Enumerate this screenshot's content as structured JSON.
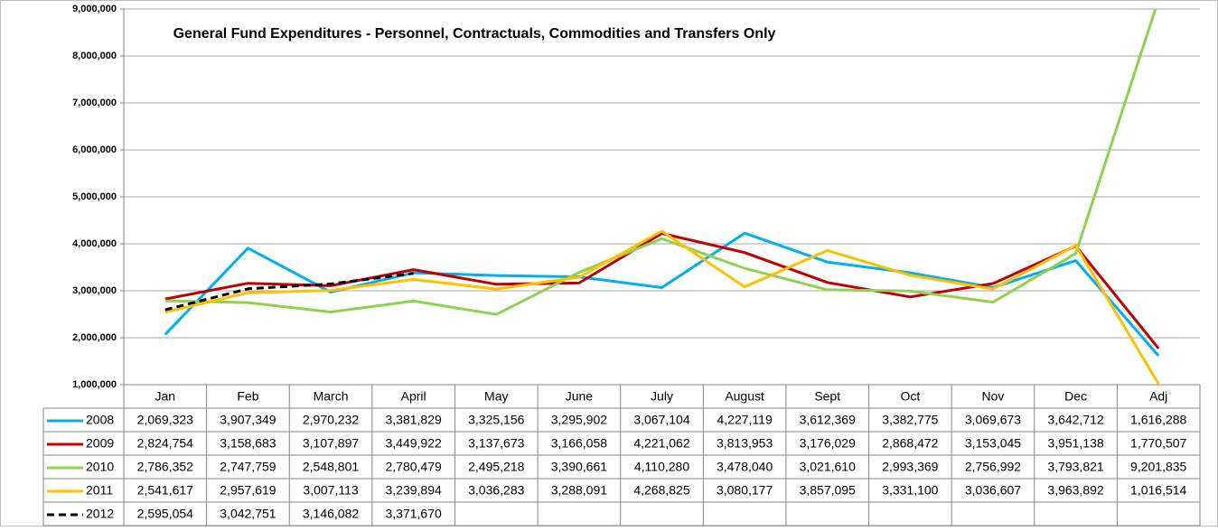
{
  "chart_data": {
    "type": "line",
    "title": "General Fund Expenditures - Personnel,  Contractuals, Commodities  and Transfers Only",
    "categories": [
      "Jan",
      "Feb",
      "March",
      "April",
      "May",
      "June",
      "July",
      "August",
      "Sept",
      "Oct",
      "Nov",
      "Dec",
      "Adj"
    ],
    "ylim": [
      1000000,
      9000000
    ],
    "yticks": [
      {
        "value": 1000000,
        "label": "1,000,000"
      },
      {
        "value": 2000000,
        "label": "2,000,000"
      },
      {
        "value": 3000000,
        "label": "3,000,000"
      },
      {
        "value": 4000000,
        "label": "4,000,000"
      },
      {
        "value": 5000000,
        "label": "5,000,000"
      },
      {
        "value": 6000000,
        "label": "6,000,000"
      },
      {
        "value": 7000000,
        "label": "7,000,000"
      },
      {
        "value": 8000000,
        "label": "8,000,000"
      },
      {
        "value": 9000000,
        "label": "9,000,000"
      }
    ],
    "grid": true,
    "series": [
      {
        "name": "2008",
        "color": "#00b0f0",
        "line_style": "solid",
        "values": [
          2069323,
          3907349,
          2970232,
          3381829,
          3325156,
          3295902,
          3067104,
          4227119,
          3612369,
          3382775,
          3069673,
          3642712,
          1616288
        ],
        "value_labels": [
          "2,069,323",
          "3,907,349",
          "2,970,232",
          "3,381,829",
          "3,325,156",
          "3,295,902",
          "3,067,104",
          "4,227,119",
          "3,612,369",
          "3,382,775",
          "3,069,673",
          "3,642,712",
          "1,616,288"
        ]
      },
      {
        "name": "2009",
        "color": "#c00000",
        "line_style": "solid",
        "values": [
          2824754,
          3158683,
          3107897,
          3449922,
          3137673,
          3166058,
          4221062,
          3813953,
          3176029,
          2868472,
          3153045,
          3951138,
          1770507
        ],
        "value_labels": [
          "2,824,754",
          "3,158,683",
          "3,107,897",
          "3,449,922",
          "3,137,673",
          "3,166,058",
          "4,221,062",
          "3,813,953",
          "3,176,029",
          "2,868,472",
          "3,153,045",
          "3,951,138",
          "1,770,507"
        ]
      },
      {
        "name": "2010",
        "color": "#92d050",
        "line_style": "solid",
        "values": [
          2786352,
          2747759,
          2548801,
          2780479,
          2495218,
          3390661,
          4110280,
          3478040,
          3021610,
          2993369,
          2756992,
          3793821,
          9201835
        ],
        "value_labels": [
          "2,786,352",
          "2,747,759",
          "2,548,801",
          "2,780,479",
          "2,495,218",
          "3,390,661",
          "4,110,280",
          "3,478,040",
          "3,021,610",
          "2,993,369",
          "2,756,992",
          "3,793,821",
          "9,201,835"
        ]
      },
      {
        "name": "2011",
        "color": "#ffc000",
        "line_style": "solid",
        "values": [
          2541617,
          2957619,
          3007113,
          3239894,
          3036283,
          3288091,
          4268825,
          3080177,
          3857095,
          3331100,
          3036607,
          3963892,
          1016514
        ],
        "value_labels": [
          "2,541,617",
          "2,957,619",
          "3,007,113",
          "3,239,894",
          "3,036,283",
          "3,288,091",
          "4,268,825",
          "3,080,177",
          "3,857,095",
          "3,331,100",
          "3,036,607",
          "3,963,892",
          "1,016,514"
        ]
      },
      {
        "name": "2012",
        "color": "#000000",
        "line_style": "dashed",
        "values": [
          2595054,
          3042751,
          3146082,
          3371670,
          null,
          null,
          null,
          null,
          null,
          null,
          null,
          null,
          null
        ],
        "value_labels": [
          "2,595,054",
          "3,042,751",
          "3,146,082",
          "3,371,670",
          null,
          null,
          null,
          null,
          null,
          null,
          null,
          null,
          null
        ]
      }
    ]
  }
}
